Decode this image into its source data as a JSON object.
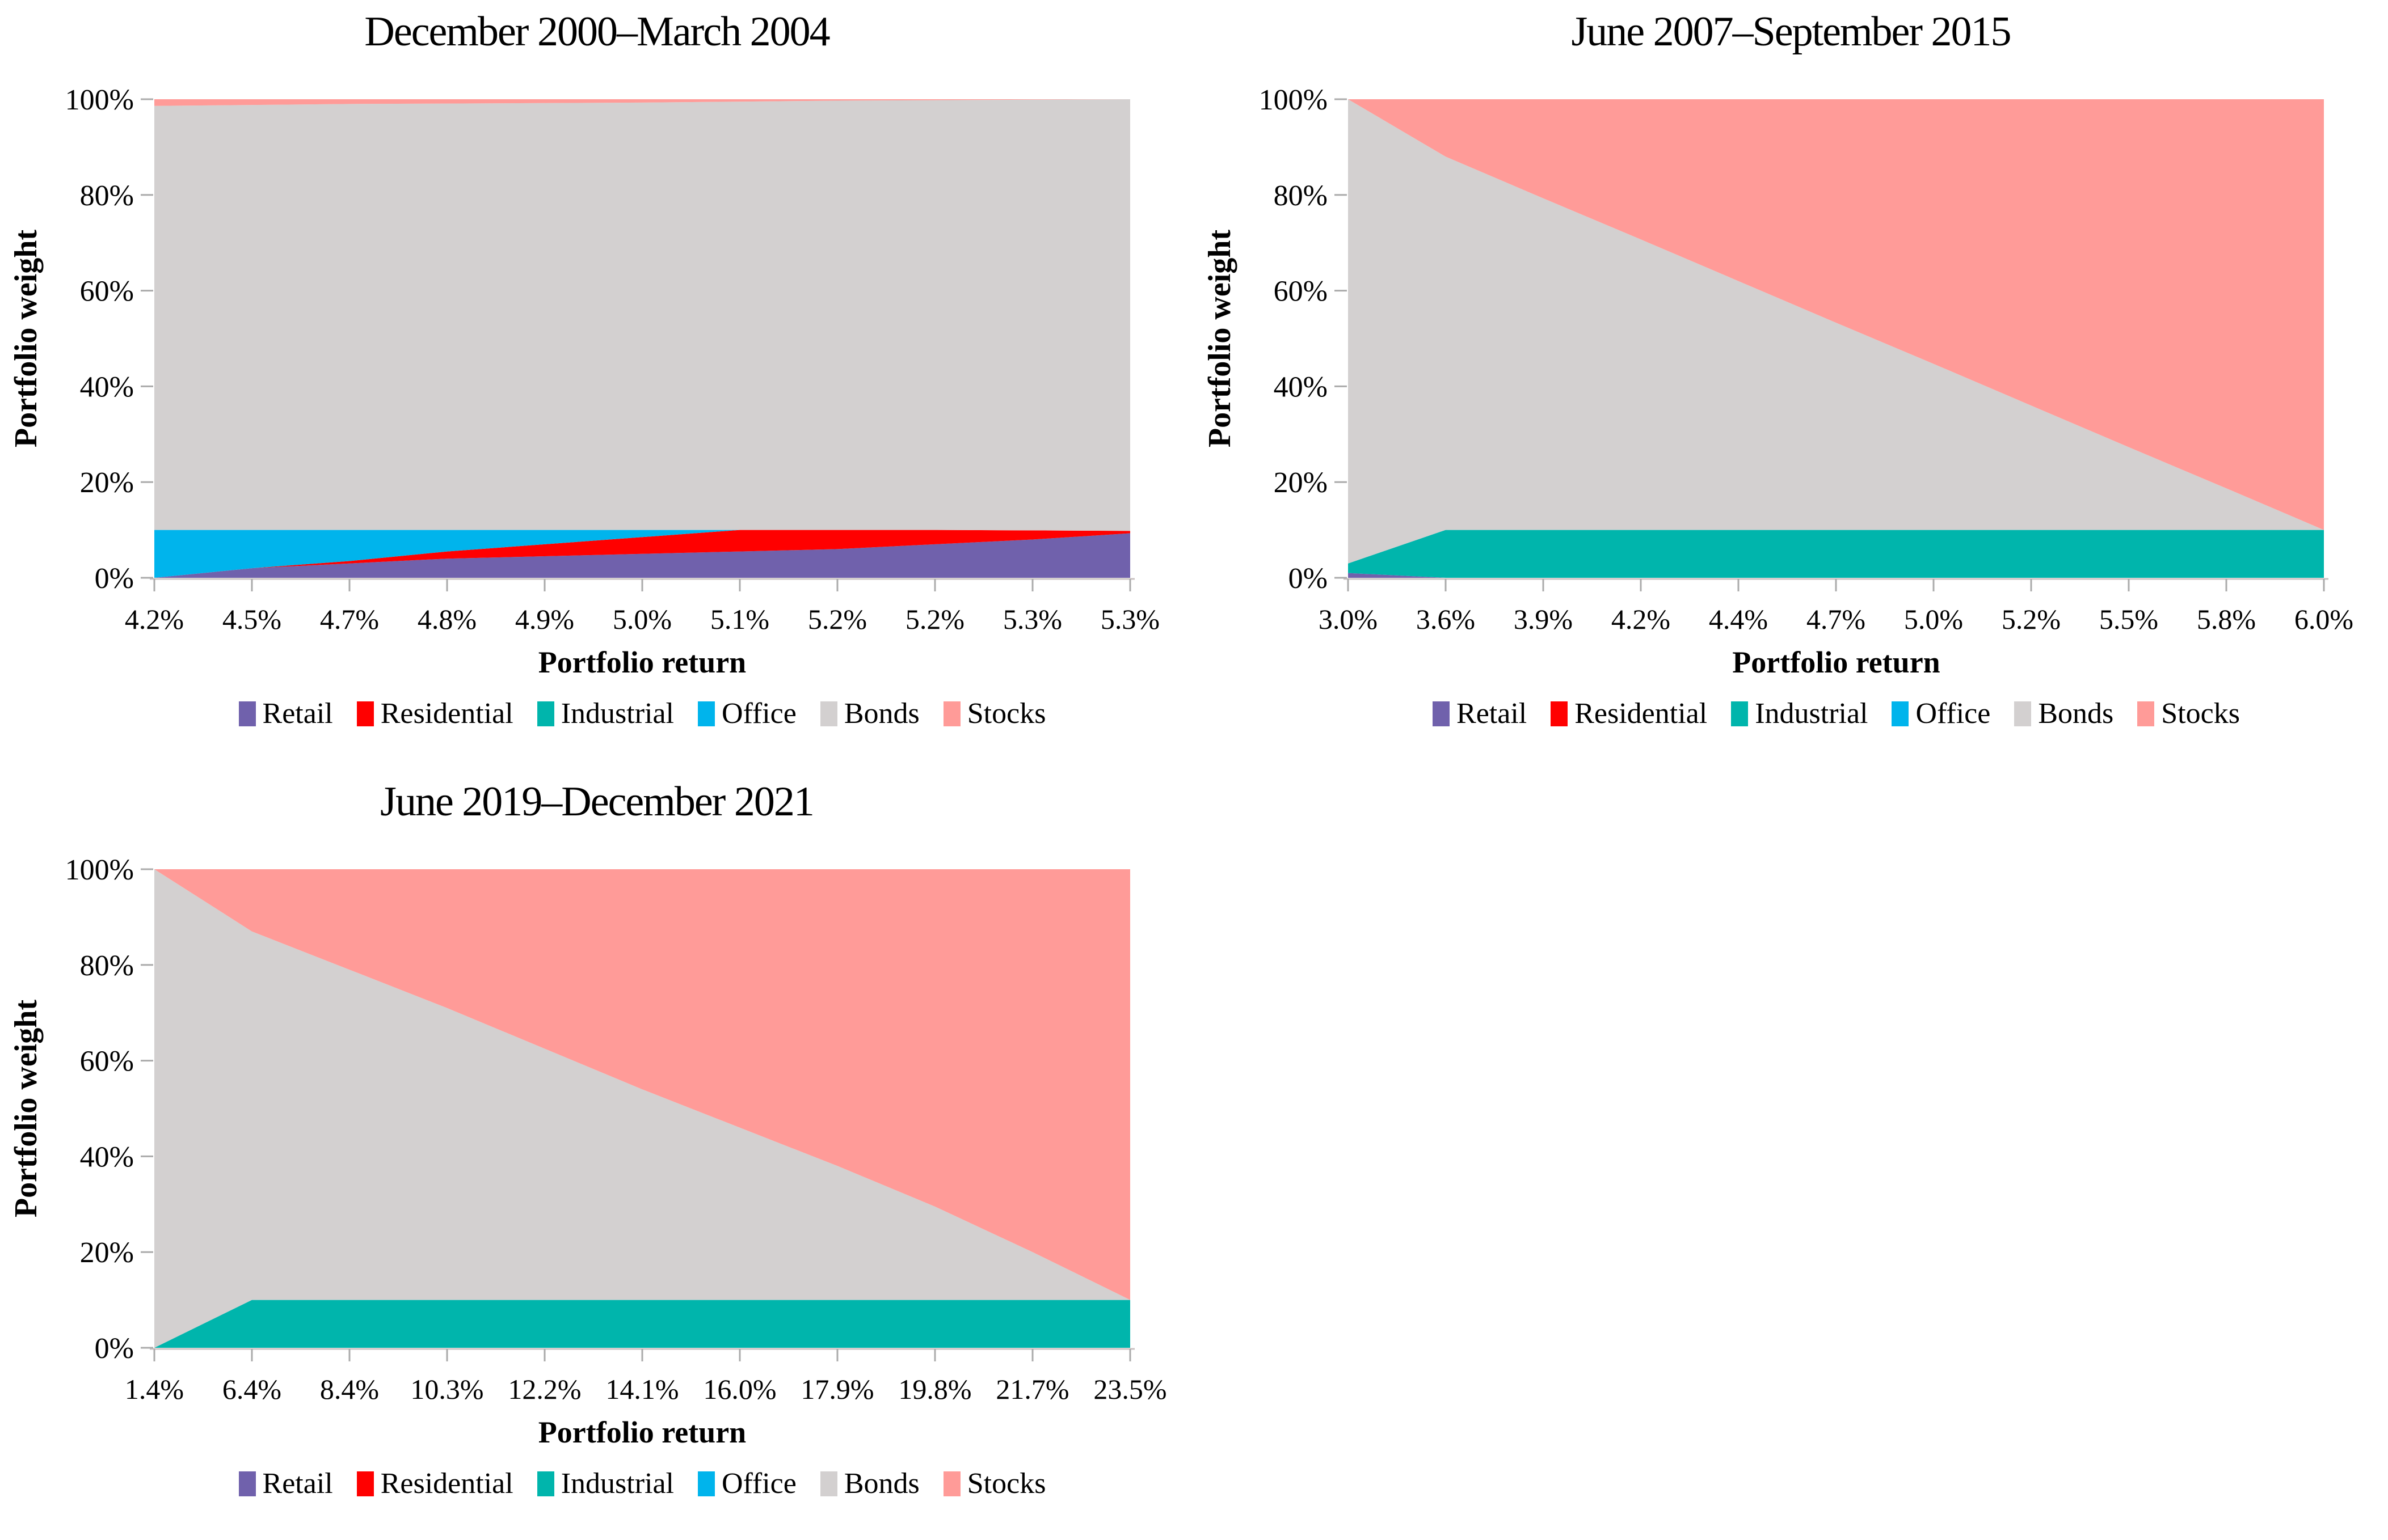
{
  "figure": {
    "description": "Three stacked area charts of efficient portfolio weights across portfolio returns",
    "background": "#FFFFFF",
    "text_color": "#000000",
    "axis_line_color": "#C9C2C2",
    "tick_color": "#ABABAB"
  },
  "chart_data": [
    {
      "type": "area",
      "stacked": true,
      "title": "December 2000–March 2004",
      "xlabel": "Portfolio return",
      "ylabel": "Portfolio weight",
      "ylim": [
        0,
        100
      ],
      "grid": false,
      "legend_position": "bottom",
      "y_ticks": [
        "0%",
        "20%",
        "40%",
        "60%",
        "80%",
        "100%"
      ],
      "categories": [
        "4.2%",
        "4.5%",
        "4.7%",
        "4.8%",
        "4.9%",
        "5.0%",
        "5.1%",
        "5.2%",
        "5.2%",
        "5.3%",
        "5.3%"
      ],
      "series": [
        {
          "name": "Retail",
          "color": "#7061AC",
          "values": [
            0,
            2,
            3,
            4,
            4.5,
            5,
            5.5,
            6,
            7,
            8,
            9.3
          ]
        },
        {
          "name": "Residential",
          "color": "#FF0000",
          "values": [
            0,
            0,
            0.5,
            1.5,
            2.5,
            3.5,
            4.5,
            4,
            3,
            1.9,
            0.5
          ]
        },
        {
          "name": "Industrial",
          "color": "#00B5AC",
          "values": [
            0,
            0,
            0,
            0,
            0,
            0,
            0,
            0,
            0,
            0,
            0
          ]
        },
        {
          "name": "Office",
          "color": "#00B4EC",
          "values": [
            10,
            8,
            6.5,
            4.5,
            3,
            1.5,
            0,
            0,
            0,
            0,
            0
          ]
        },
        {
          "name": "Bonds",
          "color": "#D3D0D0",
          "values": [
            88.6,
            88.8,
            89,
            89.1,
            89.2,
            89.3,
            89.5,
            89.7,
            89.8,
            90,
            90.2
          ]
        },
        {
          "name": "Stocks",
          "color": "#FF9B98",
          "values": [
            1.4,
            1.2,
            1,
            0.9,
            0.8,
            0.7,
            0.5,
            0.3,
            0.2,
            0.1,
            0
          ]
        }
      ]
    },
    {
      "type": "area",
      "stacked": true,
      "title": "June 2007–September 2015",
      "xlabel": "Portfolio return",
      "ylabel": "Portfolio weight",
      "ylim": [
        0,
        100
      ],
      "grid": false,
      "legend_position": "bottom",
      "y_ticks": [
        "0%",
        "20%",
        "40%",
        "60%",
        "80%",
        "100%"
      ],
      "categories": [
        "3.0%",
        "3.6%",
        "3.9%",
        "4.2%",
        "4.4%",
        "4.7%",
        "5.0%",
        "5.2%",
        "5.5%",
        "5.8%",
        "6.0%"
      ],
      "series": [
        {
          "name": "Retail",
          "color": "#7061AC",
          "values": [
            1,
            0,
            0,
            0,
            0,
            0,
            0,
            0,
            0,
            0,
            0
          ]
        },
        {
          "name": "Residential",
          "color": "#FF0000",
          "values": [
            0,
            0,
            0,
            0,
            0,
            0,
            0,
            0,
            0,
            0,
            0
          ]
        },
        {
          "name": "Industrial",
          "color": "#00B5AC",
          "values": [
            2,
            10,
            10,
            10,
            10,
            10,
            10,
            10,
            10,
            10,
            10
          ]
        },
        {
          "name": "Office",
          "color": "#00B4EC",
          "values": [
            0,
            0,
            0,
            0,
            0,
            0,
            0,
            0,
            0,
            0,
            0
          ]
        },
        {
          "name": "Bonds",
          "color": "#D3D0D0",
          "values": [
            97,
            78,
            69.3,
            60.7,
            52,
            43.3,
            34.7,
            26,
            17.3,
            8.7,
            0
          ]
        },
        {
          "name": "Stocks",
          "color": "#FF9B98",
          "values": [
            0,
            12,
            20.7,
            29.3,
            38,
            46.7,
            55.3,
            64,
            72.7,
            81.3,
            90
          ]
        }
      ]
    },
    {
      "type": "area",
      "stacked": true,
      "title": "June 2019–December 2021",
      "xlabel": "Portfolio return",
      "ylabel": "Portfolio weight",
      "ylim": [
        0,
        100
      ],
      "grid": false,
      "legend_position": "bottom",
      "y_ticks": [
        "0%",
        "20%",
        "40%",
        "60%",
        "80%",
        "100%"
      ],
      "categories": [
        "1.4%",
        "6.4%",
        "8.4%",
        "10.3%",
        "12.2%",
        "14.1%",
        "16.0%",
        "17.9%",
        "19.8%",
        "21.7%",
        "23.5%"
      ],
      "series": [
        {
          "name": "Retail",
          "color": "#7061AC",
          "values": [
            0,
            0,
            0,
            0,
            0,
            0,
            0,
            0,
            0,
            0,
            0
          ]
        },
        {
          "name": "Residential",
          "color": "#FF0000",
          "values": [
            0,
            0,
            0,
            0,
            0,
            0,
            0,
            0,
            0,
            0,
            0
          ]
        },
        {
          "name": "Industrial",
          "color": "#00B5AC",
          "values": [
            0,
            10,
            10,
            10,
            10,
            10,
            10,
            10,
            10,
            10,
            10
          ]
        },
        {
          "name": "Office",
          "color": "#00B4EC",
          "values": [
            0,
            0,
            0,
            0,
            0,
            0,
            0,
            0,
            0,
            0,
            0
          ]
        },
        {
          "name": "Bonds",
          "color": "#D3D0D0",
          "values": [
            100,
            77,
            69,
            61,
            52.5,
            44,
            36,
            28,
            19.5,
            10,
            0
          ]
        },
        {
          "name": "Stocks",
          "color": "#FF9B98",
          "values": [
            0,
            13,
            21,
            29,
            37.5,
            46,
            54,
            62,
            70.5,
            80,
            90
          ]
        }
      ]
    }
  ]
}
